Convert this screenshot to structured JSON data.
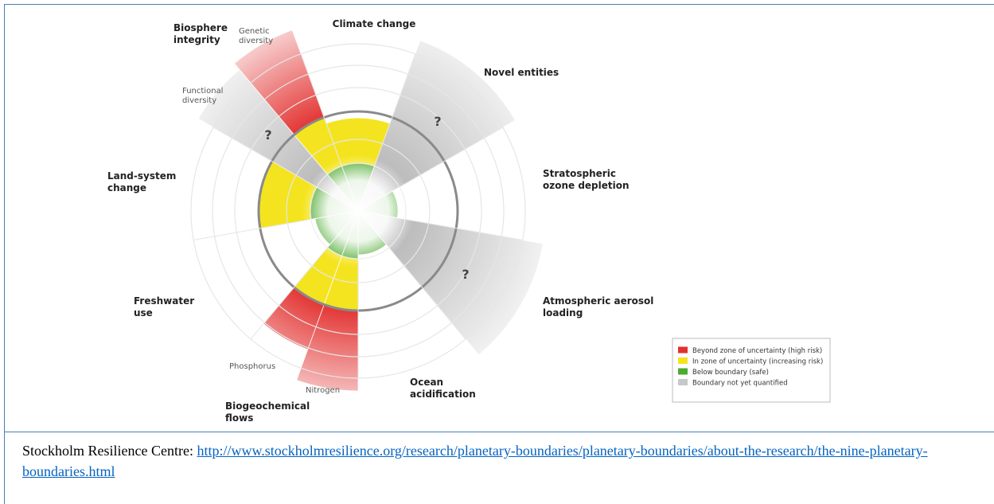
{
  "diagram": {
    "boundaries": [
      {
        "label": "Climate change"
      },
      {
        "label": "Novel entities",
        "mark": "?"
      },
      {
        "label": "Stratospheric ozone depletion"
      },
      {
        "label": "Atmospheric aerosol loading",
        "mark": "?"
      },
      {
        "label": "Ocean acidification"
      },
      {
        "label": "Biogeochemical flows",
        "parts": [
          "Nitrogen",
          "Phosphorus"
        ]
      },
      {
        "label": "Freshwater use"
      },
      {
        "label": "Land-system change"
      },
      {
        "label": "Biosphere integrity",
        "parts": [
          "Functional diversity",
          "Genetic diversity"
        ],
        "mark": "?"
      }
    ],
    "legend": [
      {
        "label": "Beyond zone of uncertainty (high risk)",
        "color": "#e2312f"
      },
      {
        "label": "In zone of uncertainty (increasing risk)",
        "color": "#f4e420"
      },
      {
        "label": "Below boundary (safe)",
        "color": "#4caa2f"
      },
      {
        "label": "Boundary not yet quantified",
        "color": "#c8c8c8"
      }
    ]
  },
  "caption": {
    "source": "Stockholm Resilience Centre:",
    "link": "http://www.stockholmresilience.org/research/planetary-boundaries/planetary-boundaries/about-the-research/the-nine-planetary-boundaries.html"
  }
}
